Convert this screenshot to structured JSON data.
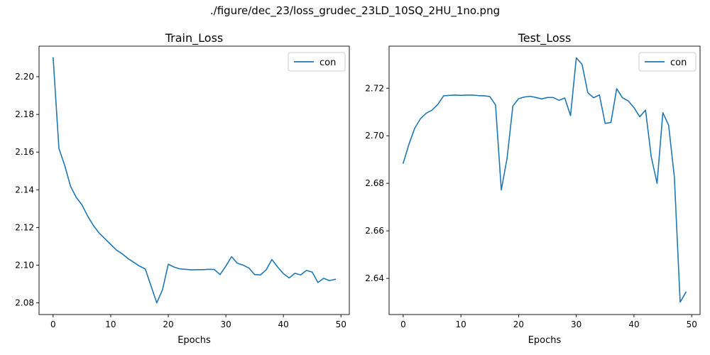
{
  "suptitle": "./figure/dec_23/loss_grudec_23LD_10SQ_2HU_1no.png",
  "colors": {
    "line": "#1f77b4",
    "axis": "#000000",
    "legend_border": "#cccccc"
  },
  "chart_data": [
    {
      "type": "line",
      "title": "Train_Loss",
      "xlabel": "Epochs",
      "ylabel": "",
      "xlim": [
        -2.45,
        51.45
      ],
      "ylim": [
        2.0738,
        2.2162
      ],
      "xticks": [
        0,
        10,
        20,
        30,
        40,
        50
      ],
      "yticks": [
        2.08,
        2.1,
        2.12,
        2.14,
        2.16,
        2.18,
        2.2
      ],
      "ytick_labels": [
        "2.08",
        "2.10",
        "2.12",
        "2.14",
        "2.16",
        "2.18",
        "2.20"
      ],
      "grid": false,
      "legend_position": "upper right",
      "series": [
        {
          "name": "con",
          "x": [
            0,
            1,
            2,
            3,
            4,
            5,
            6,
            7,
            8,
            9,
            10,
            11,
            12,
            13,
            14,
            15,
            16,
            17,
            18,
            19,
            20,
            21,
            22,
            23,
            24,
            25,
            26,
            27,
            28,
            29,
            30,
            31,
            32,
            33,
            34,
            35,
            36,
            37,
            38,
            39,
            40,
            41,
            42,
            43,
            44,
            45,
            46,
            47,
            48,
            49
          ],
          "y": [
            2.21,
            2.162,
            2.153,
            2.142,
            2.136,
            2.132,
            2.126,
            2.121,
            2.117,
            2.114,
            2.111,
            2.108,
            2.106,
            2.1035,
            2.1015,
            2.0995,
            2.098,
            2.089,
            2.08,
            2.087,
            2.1005,
            2.099,
            2.098,
            2.0978,
            2.0975,
            2.0976,
            2.0976,
            2.0978,
            2.0977,
            2.095,
            2.0995,
            2.1045,
            2.101,
            2.1,
            2.0985,
            2.095,
            2.0948,
            2.0975,
            2.103,
            2.099,
            2.0955,
            2.0932,
            2.0957,
            2.0948,
            2.0972,
            2.0963,
            2.0908,
            2.093,
            2.0918,
            2.0925
          ]
        }
      ]
    },
    {
      "type": "line",
      "title": "Test_Loss",
      "xlabel": "Epochs",
      "ylabel": "",
      "xlim": [
        -2.45,
        51.45
      ],
      "ylim": [
        2.6248,
        2.7377
      ],
      "xticks": [
        0,
        10,
        20,
        30,
        40,
        50
      ],
      "yticks": [
        2.64,
        2.66,
        2.68,
        2.7,
        2.72
      ],
      "ytick_labels": [
        "2.64",
        "2.66",
        "2.68",
        "2.70",
        "2.72"
      ],
      "grid": false,
      "legend_position": "upper right",
      "series": [
        {
          "name": "con",
          "x": [
            0,
            1,
            2,
            3,
            4,
            5,
            6,
            7,
            8,
            9,
            10,
            11,
            12,
            13,
            14,
            15,
            16,
            17,
            18,
            19,
            20,
            21,
            22,
            23,
            24,
            25,
            26,
            27,
            28,
            29,
            30,
            31,
            32,
            33,
            34,
            35,
            36,
            37,
            38,
            39,
            40,
            41,
            42,
            43,
            44,
            45,
            46,
            47,
            48,
            49
          ],
          "y": [
            2.6885,
            2.6965,
            2.7032,
            2.7072,
            2.7095,
            2.7108,
            2.7132,
            2.7168,
            2.717,
            2.7171,
            2.717,
            2.7171,
            2.7171,
            2.7169,
            2.7168,
            2.7165,
            2.713,
            2.6772,
            2.6905,
            2.7125,
            2.7156,
            2.7163,
            2.7166,
            2.7161,
            2.7155,
            2.7161,
            2.7161,
            2.7149,
            2.7159,
            2.7085,
            2.7328,
            2.73,
            2.7181,
            2.716,
            2.7172,
            2.7052,
            2.7056,
            2.7198,
            2.716,
            2.7147,
            2.7118,
            2.708,
            2.7108,
            2.691,
            2.68,
            2.7097,
            2.7045,
            2.6825,
            2.63,
            2.6342
          ]
        }
      ]
    }
  ]
}
